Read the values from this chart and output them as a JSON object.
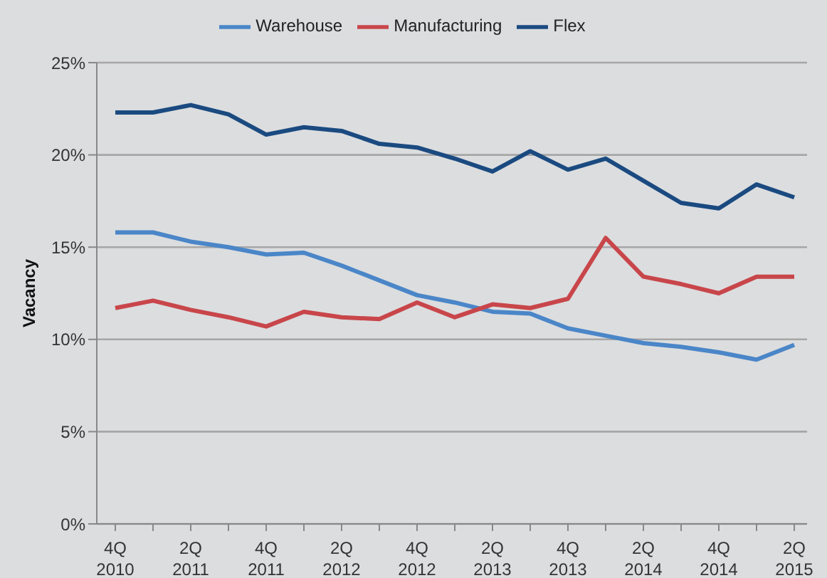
{
  "chart_data": {
    "type": "line",
    "ylabel": "Vacancy",
    "categories": [
      "4Q 2010",
      null,
      "2Q 2011",
      null,
      "4Q 2011",
      null,
      "2Q 2012",
      null,
      "4Q 2012",
      null,
      "2Q 2013",
      null,
      "4Q 2013",
      null,
      "2Q 2014",
      null,
      "4Q 2014",
      null,
      "2Q 2015"
    ],
    "series": [
      {
        "name": "Warehouse",
        "color": "#4a86c8",
        "values": [
          15.8,
          15.8,
          15.3,
          15.0,
          14.6,
          14.7,
          14.0,
          13.2,
          12.4,
          12.0,
          11.5,
          11.4,
          10.6,
          10.2,
          9.8,
          9.6,
          9.3,
          8.9,
          9.7
        ]
      },
      {
        "name": "Manufacturing",
        "color": "#c8464a",
        "values": [
          11.7,
          12.1,
          11.6,
          11.2,
          10.7,
          11.5,
          11.2,
          11.1,
          12.0,
          11.2,
          11.9,
          11.7,
          12.2,
          15.5,
          13.4,
          13.0,
          12.5,
          13.4,
          13.4
        ]
      },
      {
        "name": "Flex",
        "color": "#1a4a80",
        "values": [
          22.3,
          22.3,
          22.7,
          22.2,
          21.1,
          21.5,
          21.3,
          20.6,
          20.4,
          19.8,
          19.1,
          20.2,
          19.2,
          19.8,
          18.6,
          17.4,
          17.1,
          18.4,
          17.7
        ]
      }
    ],
    "ylim": [
      0,
      25
    ],
    "yticks": [
      {
        "value": 0,
        "label": "0%"
      },
      {
        "value": 5,
        "label": "5%"
      },
      {
        "value": 10,
        "label": "10%"
      },
      {
        "value": 15,
        "label": "15%"
      },
      {
        "value": 20,
        "label": "20%"
      },
      {
        "value": 25,
        "label": "25%"
      }
    ],
    "grid": "y",
    "legend": "top",
    "marker": "none",
    "line_style": "solid"
  }
}
